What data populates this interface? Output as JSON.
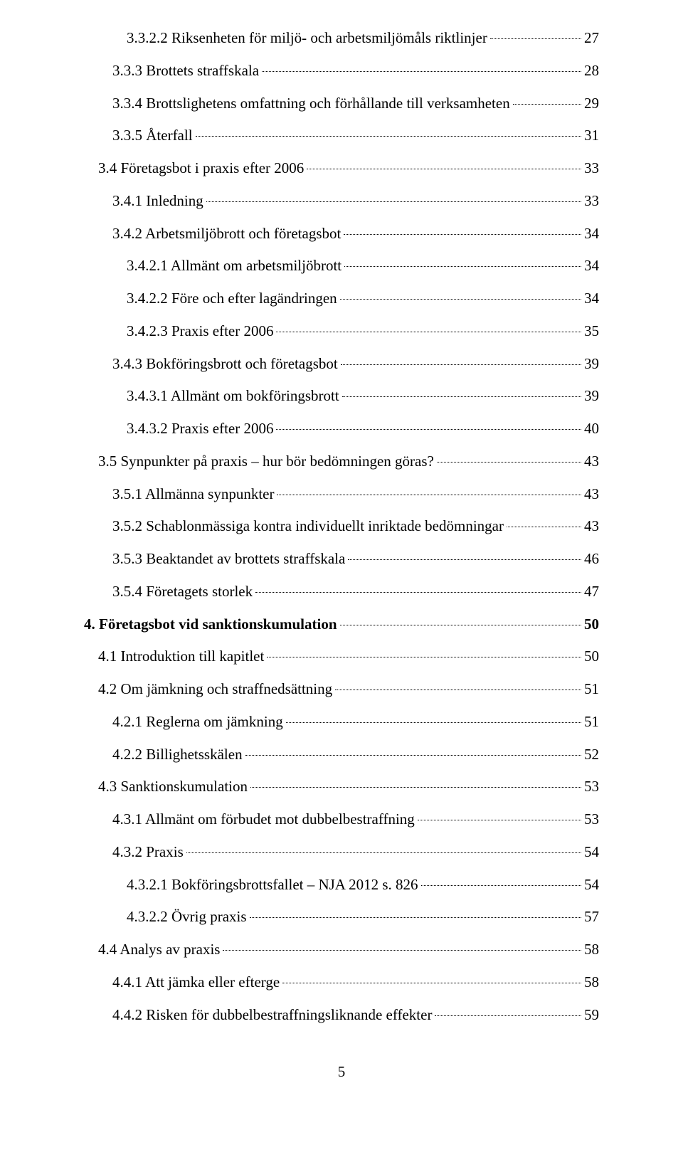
{
  "pageNumber": "5",
  "entries": [
    {
      "indent": 3,
      "bold": false,
      "title": "3.3.2.2 Riksenheten för miljö- och arbetsmiljömåls riktlinjer",
      "page": "27"
    },
    {
      "indent": 2,
      "bold": false,
      "title": "3.3.3 Brottets straffskala",
      "page": "28"
    },
    {
      "indent": 2,
      "bold": false,
      "title": "3.3.4 Brottslighetens omfattning och förhållande till verksamheten",
      "page": "29"
    },
    {
      "indent": 2,
      "bold": false,
      "title": "3.3.5 Återfall",
      "page": "31"
    },
    {
      "indent": 1,
      "bold": false,
      "title": "3.4 Företagsbot i praxis efter 2006",
      "page": "33"
    },
    {
      "indent": 2,
      "bold": false,
      "title": "3.4.1 Inledning",
      "page": "33"
    },
    {
      "indent": 2,
      "bold": false,
      "title": "3.4.2 Arbetsmiljöbrott och företagsbot",
      "page": "34"
    },
    {
      "indent": 3,
      "bold": false,
      "title": "3.4.2.1 Allmänt om arbetsmiljöbrott",
      "page": "34"
    },
    {
      "indent": 3,
      "bold": false,
      "title": "3.4.2.2 Före och efter lagändringen",
      "page": "34"
    },
    {
      "indent": 3,
      "bold": false,
      "title": "3.4.2.3 Praxis efter 2006",
      "page": "35"
    },
    {
      "indent": 2,
      "bold": false,
      "title": "3.4.3 Bokföringsbrott och företagsbot",
      "page": "39"
    },
    {
      "indent": 3,
      "bold": false,
      "title": "3.4.3.1 Allmänt om bokföringsbrott",
      "page": "39"
    },
    {
      "indent": 3,
      "bold": false,
      "title": "3.4.3.2 Praxis efter 2006",
      "page": "40"
    },
    {
      "indent": 1,
      "bold": false,
      "title": "3.5 Synpunkter på praxis – hur bör bedömningen göras?",
      "page": "43"
    },
    {
      "indent": 2,
      "bold": false,
      "title": "3.5.1 Allmänna synpunkter",
      "page": "43"
    },
    {
      "indent": 2,
      "bold": false,
      "title": "3.5.2 Schablonmässiga kontra individuellt inriktade bedömningar",
      "page": "43"
    },
    {
      "indent": 2,
      "bold": false,
      "title": "3.5.3 Beaktandet av brottets straffskala",
      "page": "46"
    },
    {
      "indent": 2,
      "bold": false,
      "title": "3.5.4 Företagets storlek",
      "page": "47"
    },
    {
      "indent": 0,
      "bold": true,
      "title": "4. Företagsbot vid sanktionskumulation",
      "page": "50"
    },
    {
      "indent": 1,
      "bold": false,
      "title": "4.1 Introduktion till kapitlet",
      "page": "50"
    },
    {
      "indent": 1,
      "bold": false,
      "title": "4.2 Om jämkning och straffnedsättning",
      "page": "51"
    },
    {
      "indent": 2,
      "bold": false,
      "title": "4.2.1 Reglerna om jämkning",
      "page": "51"
    },
    {
      "indent": 2,
      "bold": false,
      "title": "4.2.2 Billighetsskälen",
      "page": "52"
    },
    {
      "indent": 1,
      "bold": false,
      "title": "4.3 Sanktionskumulation",
      "page": "53"
    },
    {
      "indent": 2,
      "bold": false,
      "title": "4.3.1 Allmänt om förbudet mot dubbelbestraffning",
      "page": "53"
    },
    {
      "indent": 2,
      "bold": false,
      "title": "4.3.2 Praxis",
      "page": "54"
    },
    {
      "indent": 3,
      "bold": false,
      "title": "4.3.2.1 Bokföringsbrottsfallet – NJA 2012 s. 826",
      "page": "54"
    },
    {
      "indent": 3,
      "bold": false,
      "title": "4.3.2.2 Övrig praxis",
      "page": "57"
    },
    {
      "indent": 1,
      "bold": false,
      "title": "4.4 Analys av praxis",
      "page": "58"
    },
    {
      "indent": 2,
      "bold": false,
      "title": "4.4.1 Att jämka eller efterge",
      "page": "58"
    },
    {
      "indent": 2,
      "bold": false,
      "title": "4.4.2 Risken för dubbelbestraffningsliknande effekter",
      "page": "59"
    }
  ]
}
